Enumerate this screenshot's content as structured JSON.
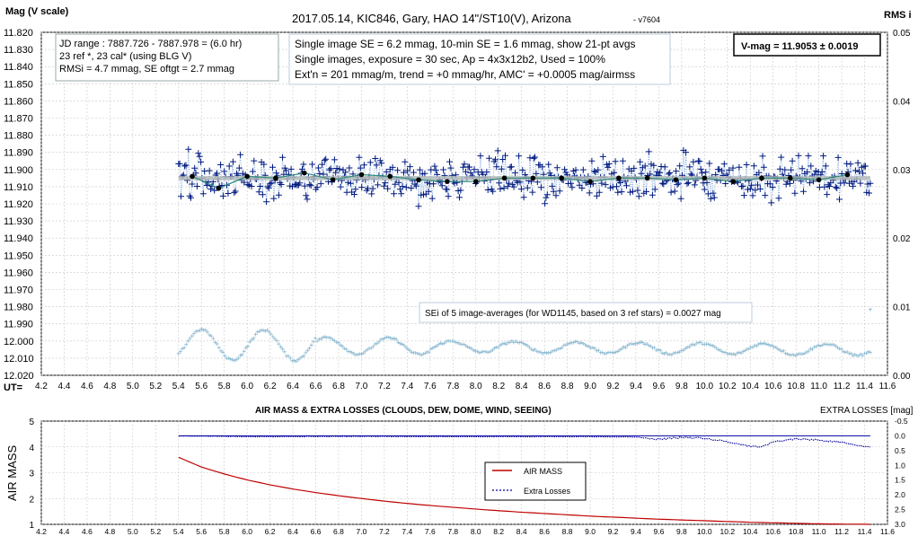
{
  "chart_data": [
    {
      "type": "scatter",
      "title": "2017.05.14,  KIC846,  Gary,  HAO 14\"/ST10(V),  Arizona",
      "version": "- v7604",
      "ylabel": "Mag (V scale)",
      "y2label": "RMS i",
      "xlabel": "UT=",
      "xlim": [
        4.2,
        11.6
      ],
      "ylim": [
        12.02,
        11.82
      ],
      "y_ticks": [
        "11.820",
        "11.830",
        "11.840",
        "11.850",
        "11.860",
        "11.870",
        "11.880",
        "11.890",
        "11.900",
        "11.910",
        "11.920",
        "11.930",
        "11.940",
        "11.950",
        "11.960",
        "11.970",
        "11.980",
        "11.990",
        "12.000",
        "12.010",
        "12.020"
      ],
      "y2lim": [
        0.0,
        0.05
      ],
      "y2_ticks": [
        "0.05",
        "0.04",
        "0.03",
        "0.02",
        "0.01",
        "0.00"
      ],
      "x_ticks": [
        "4.2",
        "4.4",
        "4.6",
        "4.8",
        "5.0",
        "5.2",
        "5.4",
        "5.6",
        "5.8",
        "6.0",
        "6.2",
        "6.4",
        "6.6",
        "6.8",
        "7.0",
        "7.2",
        "7.4",
        "7.6",
        "7.8",
        "8.0",
        "8.2",
        "8.4",
        "8.6",
        "8.8",
        "9.0",
        "9.2",
        "9.4",
        "9.6",
        "9.8",
        "10.0",
        "10.2",
        "10.4",
        "10.6",
        "10.8",
        "11.0",
        "11.2",
        "11.4",
        "11.6"
      ],
      "annotations": {
        "box_left": [
          "JD range : 7887.726  - 7887.978  = (6.0 hr)",
          "23 ref *, 23 cal* (using BLG V)",
          "RMSi = 4.7 mmag, SE oftgt = 2.7 mmag"
        ],
        "box_center": [
          "Single image SE = 6.2 mmag, 10-min SE = 1.6 mmag, show 21-pt avgs",
          "Single images, exposure = 30  sec, Ap = 4x3x12b2, Used = 100%",
          "Ext'n = 201 mmag/m, trend = +0 mmag/hr, AMC' = +0.0005 mag/airmss"
        ],
        "box_right": "V-mag = 11.9053 ± 0.0019",
        "se_note": "SEi of 5 image-averages (for WD1145, based on 3 ref stars) = 0.0027 mag"
      },
      "series": [
        {
          "name": "",
          "marker": "plus",
          "color": "#001a80",
          "x_range": [
            5.4,
            11.45
          ],
          "mean": 11.905,
          "count": 560
        },
        {
          "name": "",
          "marker": "dot",
          "color": "#000000",
          "x": [
            5.52,
            5.75,
            6.0,
            6.25,
            6.5,
            6.75,
            7.0,
            7.25,
            7.5,
            7.75,
            8.0,
            8.25,
            8.5,
            8.75,
            9.0,
            9.25,
            9.5,
            9.75,
            10.0,
            10.25,
            10.5,
            10.75,
            11.0,
            11.25
          ],
          "y": [
            11.904,
            11.911,
            11.904,
            11.905,
            11.902,
            11.906,
            11.903,
            11.904,
            11.906,
            11.907,
            11.907,
            11.905,
            11.905,
            11.905,
            11.907,
            11.905,
            11.905,
            11.906,
            11.905,
            11.907,
            11.905,
            11.905,
            11.906,
            11.903
          ]
        },
        {
          "name": "",
          "marker": "line",
          "color": "#b0b8b8",
          "x": [
            5.4,
            11.45
          ],
          "y": [
            11.905,
            11.905
          ]
        },
        {
          "name": "",
          "marker": "plus-small",
          "color": "#8ab8d0",
          "axis": "y2",
          "x_range": [
            5.4,
            11.45
          ],
          "mean": 0.0045
        }
      ]
    },
    {
      "type": "line",
      "title": "AIR MASS & EXTRA LOSSES (CLOUDS, DEW, DOME, WIND, SEEING)",
      "ylabel": "AIR MASS",
      "y2label": "EXTRA LOSSES [mag]",
      "xlim": [
        4.2,
        11.6
      ],
      "ylim": [
        1,
        5
      ],
      "y_ticks": [
        "1",
        "2",
        "3",
        "4",
        "5"
      ],
      "y2lim": [
        3.0,
        -0.5
      ],
      "y2_ticks": [
        "-0.5",
        "0.0",
        "0.5",
        "1.0",
        "1.5",
        "2.0",
        "2.5",
        "3.0"
      ],
      "x_ticks": [
        "4.2",
        "4.4",
        "4.6",
        "4.8",
        "5.0",
        "5.2",
        "5.4",
        "5.6",
        "5.8",
        "6.0",
        "6.2",
        "6.4",
        "6.6",
        "6.8",
        "7.0",
        "7.2",
        "7.4",
        "7.6",
        "7.8",
        "8.0",
        "8.2",
        "8.4",
        "8.6",
        "8.8",
        "9.0",
        "9.2",
        "9.4",
        "9.6",
        "9.8",
        "10.0",
        "10.2",
        "10.4",
        "10.6",
        "10.8",
        "11.0",
        "11.2",
        "11.4",
        "11.6"
      ],
      "legend": [
        "AIR MASS",
        "Extra Losses"
      ],
      "legend_position": "center-right",
      "series": [
        {
          "name": "AIR MASS",
          "color": "#c00000",
          "x": [
            5.4,
            5.6,
            5.8,
            6.0,
            6.2,
            6.4,
            6.6,
            6.8,
            7.0,
            7.2,
            7.4,
            7.6,
            7.8,
            8.0,
            8.2,
            8.4,
            8.6,
            8.8,
            9.0,
            9.2,
            9.4,
            9.6,
            9.8,
            10.0,
            10.2,
            10.4,
            10.6,
            10.8,
            11.0,
            11.2,
            11.45
          ],
          "y": [
            3.6,
            3.22,
            2.95,
            2.72,
            2.53,
            2.37,
            2.23,
            2.11,
            2.0,
            1.9,
            1.81,
            1.73,
            1.66,
            1.59,
            1.53,
            1.47,
            1.42,
            1.37,
            1.32,
            1.28,
            1.24,
            1.2,
            1.17,
            1.14,
            1.11,
            1.08,
            1.06,
            1.04,
            1.02,
            1.01,
            1.0
          ]
        },
        {
          "name": "Extra Losses",
          "color": "#0000a0",
          "x": [
            5.4,
            6.0,
            7.0,
            8.0,
            9.0,
            9.4,
            9.6,
            9.8,
            10.0,
            10.2,
            10.4,
            10.5,
            10.6,
            10.8,
            11.0,
            11.2,
            11.45
          ],
          "y": [
            0.0,
            0.03,
            0.02,
            0.03,
            0.03,
            0.04,
            0.12,
            0.05,
            0.08,
            0.2,
            0.35,
            0.38,
            0.2,
            0.1,
            0.14,
            0.22,
            0.38
          ]
        }
      ]
    }
  ]
}
